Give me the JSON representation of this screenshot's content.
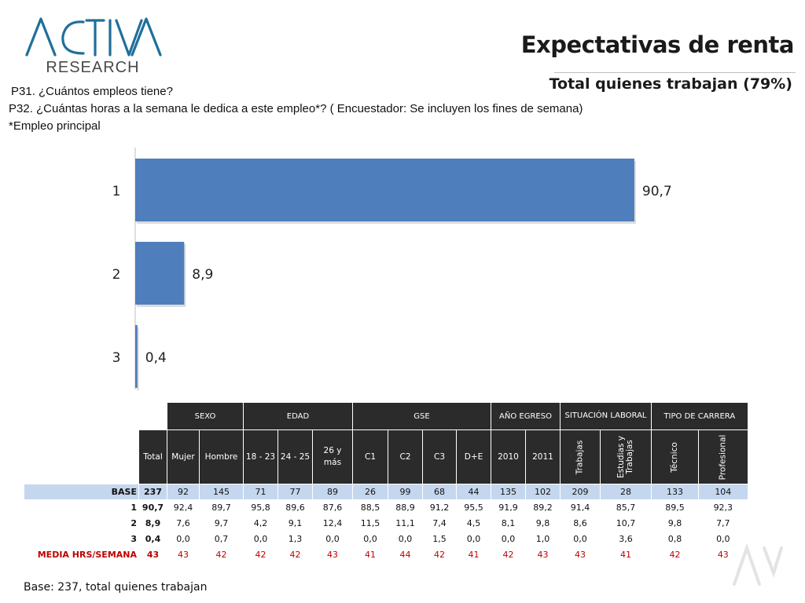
{
  "logo": {
    "brand": "ACTIVA",
    "sub": "RESEARCH"
  },
  "header": {
    "title": "Expectativas de renta",
    "subtitle": "Total quienes trabajan (79%)"
  },
  "questions": {
    "q1": "P31. ¿Cuántos empleos tiene?",
    "q2": "P32. ¿Cuántas horas a la semana le dedica a este empleo*? ( Encuestador: Se incluyen los fines de semana)",
    "q3": "*Empleo principal"
  },
  "colors": {
    "bar": "#4f7ebc",
    "table_header": "#2b2b2b",
    "base_row": "#c5d7ee",
    "media_text": "#c00000"
  },
  "chart_data": {
    "type": "bar",
    "orientation": "horizontal",
    "categories": [
      "1",
      "2",
      "3"
    ],
    "values": [
      90.7,
      8.9,
      0.4
    ],
    "value_labels": [
      "90,7",
      "8,9",
      "0,4"
    ],
    "xlim": [
      0,
      100
    ]
  },
  "table": {
    "group_headers": [
      "SEXO",
      "EDAD",
      "GSE",
      "AÑO EGRESO",
      "SITUACIÓN LABORAL",
      "TIPO DE CARRERA"
    ],
    "sub_headers": [
      "Total",
      "Mujer",
      "Hombre",
      "18 - 23",
      "24 - 25",
      "26 y más",
      "C1",
      "C2",
      "C3",
      "D+E",
      "2010",
      "2011",
      "Trabajas",
      "Estudias y Trabajas",
      "Técnico",
      "Profesional"
    ],
    "rows": [
      {
        "label": "BASE",
        "values": [
          "237",
          "92",
          "145",
          "71",
          "77",
          "89",
          "26",
          "99",
          "68",
          "44",
          "135",
          "102",
          "209",
          "28",
          "133",
          "104"
        ]
      },
      {
        "label": "1",
        "values": [
          "90,7",
          "92,4",
          "89,7",
          "95,8",
          "89,6",
          "87,6",
          "88,5",
          "88,9",
          "91,2",
          "95,5",
          "91,9",
          "89,2",
          "91,4",
          "85,7",
          "89,5",
          "92,3"
        ]
      },
      {
        "label": "2",
        "values": [
          "8,9",
          "7,6",
          "9,7",
          "4,2",
          "9,1",
          "12,4",
          "11,5",
          "11,1",
          "7,4",
          "4,5",
          "8,1",
          "9,8",
          "8,6",
          "10,7",
          "9,8",
          "7,7"
        ]
      },
      {
        "label": "3",
        "values": [
          "0,4",
          "0,0",
          "0,7",
          "0,0",
          "1,3",
          "0,0",
          "0,0",
          "0,0",
          "1,5",
          "0,0",
          "0,0",
          "1,0",
          "0,0",
          "3,6",
          "0,8",
          "0,0"
        ]
      },
      {
        "label": "MEDIA HRS/SEMANA",
        "values": [
          "43",
          "43",
          "42",
          "42",
          "42",
          "43",
          "41",
          "44",
          "42",
          "41",
          "42",
          "43",
          "43",
          "41",
          "42",
          "43"
        ]
      }
    ]
  },
  "footer": {
    "base_note": "Base: 237, total quienes trabajan"
  }
}
